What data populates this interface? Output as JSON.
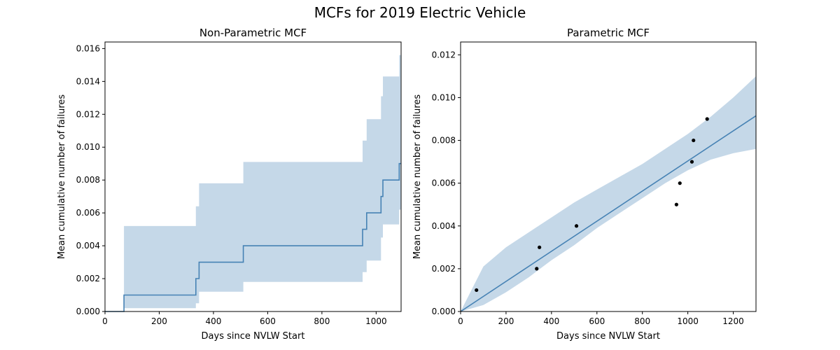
{
  "figure": {
    "title": "MCFs for 2019 Electric Vehicle"
  },
  "colors": {
    "line": "#4682b4",
    "band": "#c5d8e8",
    "points": "#000000",
    "axis": "#000000"
  },
  "chart_data": [
    {
      "type": "line",
      "title": "Non-Parametric MCF",
      "xlabel": "Days since NVLW Start",
      "ylabel": "Mean cumulative number of failures",
      "xlim": [
        0,
        1092
      ],
      "ylim": [
        0,
        0.0164
      ],
      "xticks": [
        0,
        200,
        400,
        600,
        800,
        1000
      ],
      "xtick_labels": [
        "0",
        "200",
        "400",
        "600",
        "800",
        "1000"
      ],
      "yticks": [
        0,
        0.002,
        0.004,
        0.006,
        0.008,
        0.01,
        0.012,
        0.014,
        0.016
      ],
      "ytick_labels": [
        "0.000",
        "0.002",
        "0.004",
        "0.006",
        "0.008",
        "0.010",
        "0.012",
        "0.014",
        "0.016"
      ],
      "step": {
        "x": [
          0,
          70,
          335,
          347,
          510,
          950,
          965,
          1018,
          1025,
          1085,
          1092
        ],
        "y": [
          0,
          0.001,
          0.002,
          0.003,
          0.004,
          0.005,
          0.006,
          0.007,
          0.008,
          0.009,
          0.009
        ]
      },
      "band": {
        "x": [
          0,
          70,
          335,
          347,
          510,
          950,
          965,
          1018,
          1025,
          1085,
          1092
        ],
        "lower": [
          0,
          0.0002,
          0.0005,
          0.0012,
          0.0018,
          0.0024,
          0.0031,
          0.0045,
          0.0053,
          0.0062,
          0.0062
        ],
        "upper": [
          0,
          0.0052,
          0.0064,
          0.0078,
          0.0091,
          0.0104,
          0.0117,
          0.0131,
          0.0143,
          0.0156,
          0.0156
        ]
      },
      "grid": false
    },
    {
      "type": "line",
      "title": "Parametric MCF",
      "xlabel": "Days since NVLW Start",
      "ylabel": "Mean cumulative number of failures",
      "xlim": [
        0,
        1300
      ],
      "ylim": [
        0,
        0.0126
      ],
      "xticks": [
        0,
        200,
        400,
        600,
        800,
        1000,
        1200
      ],
      "xtick_labels": [
        "0",
        "200",
        "400",
        "600",
        "800",
        "1000",
        "1200"
      ],
      "yticks": [
        0,
        0.002,
        0.004,
        0.006,
        0.008,
        0.01,
        0.012
      ],
      "ytick_labels": [
        "0.000",
        "0.002",
        "0.004",
        "0.006",
        "0.008",
        "0.010",
        "0.012"
      ],
      "fit": {
        "x": [
          0,
          1300
        ],
        "y": [
          0,
          0.00915
        ]
      },
      "band": {
        "x": [
          0,
          100,
          200,
          300,
          400,
          500,
          600,
          700,
          800,
          900,
          1000,
          1100,
          1200,
          1300
        ],
        "lower": [
          0,
          0.0003,
          0.0009,
          0.0016,
          0.0024,
          0.0031,
          0.0039,
          0.0046,
          0.0053,
          0.006,
          0.0066,
          0.0071,
          0.0074,
          0.0076
        ],
        "upper": [
          0,
          0.0021,
          0.003,
          0.0037,
          0.0044,
          0.0051,
          0.0057,
          0.0063,
          0.0069,
          0.0076,
          0.0083,
          0.0091,
          0.01,
          0.011
        ]
      },
      "points": [
        {
          "x": 70,
          "y": 0.001
        },
        {
          "x": 335,
          "y": 0.002
        },
        {
          "x": 347,
          "y": 0.003
        },
        {
          "x": 510,
          "y": 0.004
        },
        {
          "x": 950,
          "y": 0.005
        },
        {
          "x": 965,
          "y": 0.006
        },
        {
          "x": 1018,
          "y": 0.007
        },
        {
          "x": 1025,
          "y": 0.008
        },
        {
          "x": 1085,
          "y": 0.009
        }
      ],
      "grid": false
    }
  ]
}
